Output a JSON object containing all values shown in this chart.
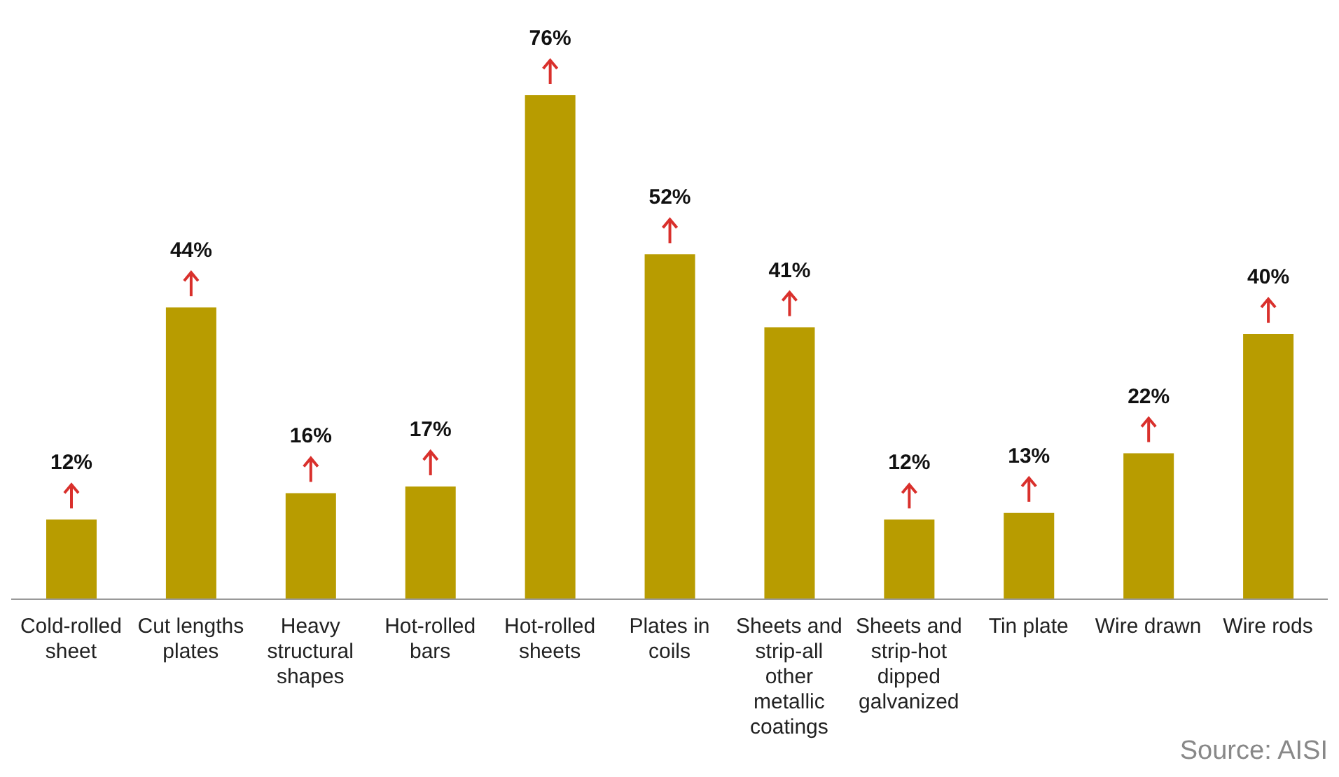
{
  "chart_data": {
    "type": "bar",
    "categories": [
      "Cold-rolled sheet",
      "Cut lengths plates",
      "Heavy structural shapes",
      "Hot-rolled bars",
      "Hot-rolled sheets",
      "Plates in coils",
      "Sheets and strip-all other metallic coatings",
      "Sheets and strip-hot dipped galvanized",
      "Tin plate",
      "Wire drawn",
      "Wire rods"
    ],
    "values": [
      12,
      44,
      16,
      17,
      76,
      52,
      41,
      12,
      13,
      22,
      40
    ],
    "value_labels": [
      "12%",
      "44%",
      "16%",
      "17%",
      "76%",
      "52%",
      "41%",
      "12%",
      "13%",
      "22%",
      "40%"
    ],
    "color": "#b89c00",
    "annotations": [
      "Source: AISI"
    ]
  }
}
